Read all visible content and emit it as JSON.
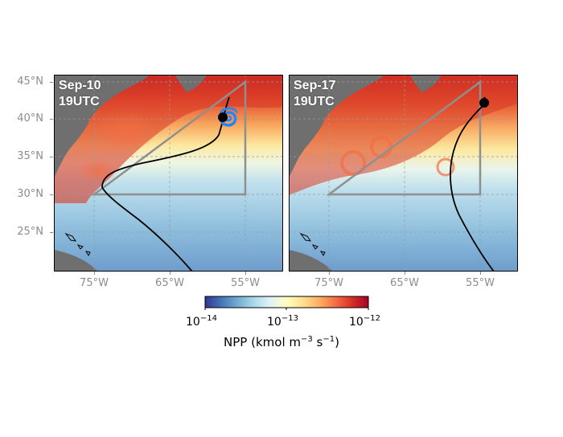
{
  "panels": [
    {
      "label_line1": "Sep-10",
      "label_line2": "19UTC"
    },
    {
      "label_line1": "Sep-17",
      "label_line2": "19UTC"
    }
  ],
  "lat_ticks": [
    "45°N",
    "40°N",
    "35°N",
    "30°N",
    "25°N"
  ],
  "lon_ticks": [
    "75°W",
    "65°W",
    "55°W"
  ],
  "colorbar": {
    "tick_base": "10",
    "tick_exponents": [
      "−14",
      "−13",
      "−12"
    ],
    "label_prefix": "NPP (kmol m",
    "label_exp1": "−3",
    "label_mid": " s",
    "label_exp2": "−1",
    "label_suffix": ")",
    "scale": "log",
    "range": [
      1e-14,
      1e-12
    ],
    "colormap": [
      "#313695",
      "#4575b4",
      "#74add1",
      "#abd9e9",
      "#e0f3f8",
      "#ffffbf",
      "#fee090",
      "#fdae61",
      "#f46d43",
      "#d73027",
      "#a50026"
    ]
  },
  "colors": {
    "land": "#6f6f6f",
    "track": "#000000",
    "triangle": "#8f8f8f",
    "grid": "#9a9a9a",
    "axis_text": "#8c8c8c"
  }
}
